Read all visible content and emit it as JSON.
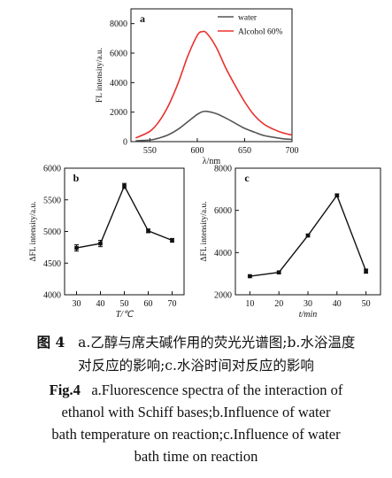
{
  "chart_data": [
    {
      "panel": "a",
      "type": "line",
      "xlabel": "λ/nm",
      "ylabel": "FL intensity/a.u.",
      "xlim": [
        530,
        700
      ],
      "ylim": [
        0,
        9000
      ],
      "xticks": [
        550,
        600,
        650,
        700
      ],
      "yticks": [
        0,
        2000,
        4000,
        6000,
        8000
      ],
      "legend_position": "top-right",
      "x": [
        535,
        550,
        560,
        570,
        580,
        590,
        600,
        605,
        610,
        620,
        630,
        640,
        650,
        660,
        670,
        680,
        690,
        700
      ],
      "series": [
        {
          "name": "water",
          "color": "#555555",
          "values": [
            60,
            110,
            250,
            480,
            850,
            1350,
            1850,
            2020,
            2050,
            1900,
            1600,
            1250,
            900,
            650,
            420,
            300,
            200,
            150
          ]
        },
        {
          "name": "Alcohol 60%",
          "color": "#e8302c",
          "values": [
            250,
            700,
            1400,
            2500,
            4000,
            5800,
            7200,
            7450,
            7350,
            6400,
            5000,
            3800,
            2700,
            1800,
            1200,
            850,
            600,
            450
          ]
        }
      ]
    },
    {
      "panel": "b",
      "type": "line",
      "xlabel": "T/℃",
      "ylabel": "ΔFL intensity/a.u.",
      "xlim": [
        25,
        75
      ],
      "ylim": [
        4000,
        6000
      ],
      "xticks": [
        30,
        40,
        50,
        60,
        70
      ],
      "yticks": [
        4000,
        4500,
        5000,
        5500,
        6000
      ],
      "x": [
        30,
        40,
        50,
        60,
        70
      ],
      "series": [
        {
          "color": "#111111",
          "values": [
            4740,
            4810,
            5720,
            5010,
            4860
          ],
          "errors": [
            50,
            50,
            40,
            30,
            30
          ]
        }
      ]
    },
    {
      "panel": "c",
      "type": "line",
      "xlabel": "t/min",
      "ylabel": "ΔFL intensity/a.u.",
      "xlim": [
        5,
        55
      ],
      "ylim": [
        2000,
        8000
      ],
      "xticks": [
        10,
        20,
        30,
        40,
        50
      ],
      "yticks": [
        2000,
        4000,
        6000,
        8000
      ],
      "x": [
        10,
        20,
        30,
        40,
        50
      ],
      "series": [
        {
          "color": "#111111",
          "values": [
            2880,
            3060,
            4810,
            6710,
            3120
          ],
          "errors": [
            40,
            50,
            50,
            60,
            100
          ]
        }
      ]
    }
  ],
  "caption": {
    "cn_label": "图 4",
    "cn_line1": "a.乙醇与席夫碱作用的荧光光谱图;b.水浴温度",
    "cn_line2": "对反应的影响;c.水浴时间对反应的影响",
    "en_label": "Fig.4",
    "en_line1": "a.Fluorescence spectra of the interaction of",
    "en_line2": "ethanol with Schiff bases;b.Influence of water",
    "en_line3": "bath temperature on reaction;c.Influence of water",
    "en_line4": "bath time on reaction"
  }
}
